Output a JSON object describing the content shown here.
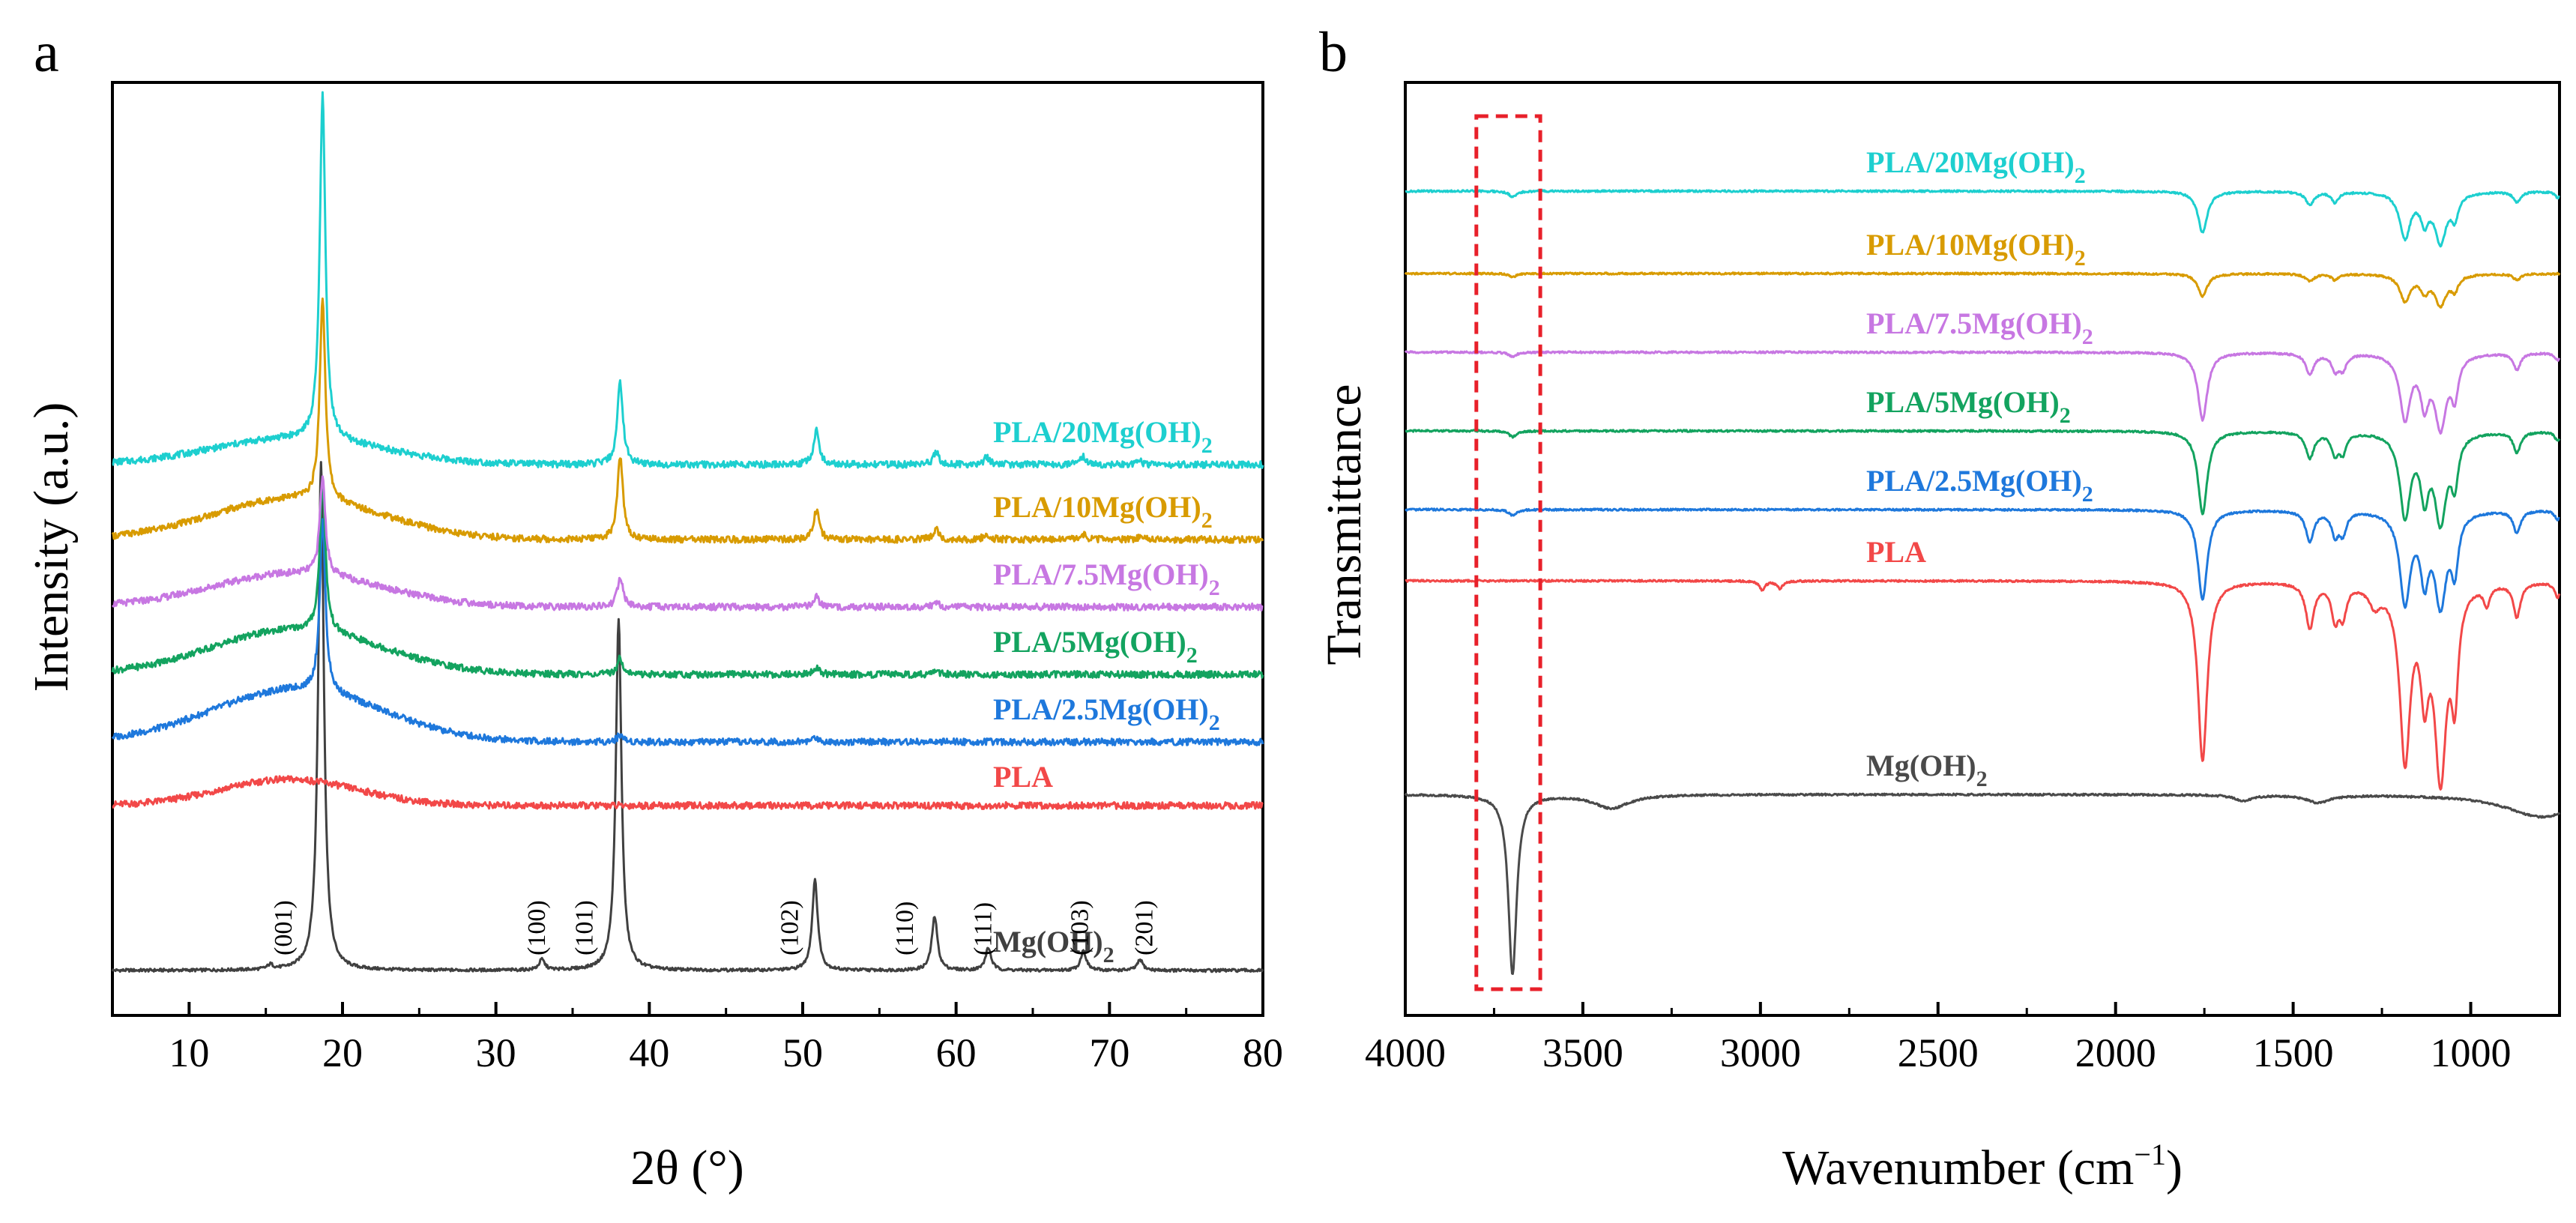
{
  "chart_data": [
    {
      "panel": "a",
      "type": "line",
      "title": "",
      "xlabel": "2θ (°)",
      "ylabel": "Intensity (a.u.)",
      "xlim": [
        5,
        80
      ],
      "xticks": [
        10,
        20,
        30,
        40,
        50,
        60,
        70,
        80
      ],
      "yticks": [],
      "legend_placement": "inline-right",
      "series": [
        {
          "name": "Mg(OH)2",
          "label": "Mg(OH)",
          "sub": "2",
          "color": "#404040",
          "offset": 0,
          "baseline": 0,
          "hump": {
            "center": 20,
            "width": 5,
            "height": 0
          },
          "peaks": [
            [
              15.3,
              6
            ],
            [
              18.6,
              680
            ],
            [
              33.0,
              14
            ],
            [
              38.0,
              470
            ],
            [
              50.8,
              120
            ],
            [
              58.6,
              72
            ],
            [
              62.1,
              30
            ],
            [
              68.3,
              26
            ],
            [
              72.0,
              14
            ]
          ]
        },
        {
          "name": "PLA",
          "label": "PLA",
          "sub": "",
          "color": "#f24848",
          "offset": 220,
          "baseline": 0,
          "hump": {
            "center": 16.5,
            "width": 4.5,
            "height": 35
          },
          "peaks": []
        },
        {
          "name": "PLA/2.5Mg(OH)2",
          "label": "PLA/2.5Mg(OH)",
          "sub": "2",
          "color": "#1e78dc",
          "offset": 310,
          "baseline": -5,
          "hump": {
            "center": 17,
            "width": 5.5,
            "height": 70
          },
          "peaks": [
            [
              18.7,
              230
            ],
            [
              38.1,
              10
            ],
            [
              50.8,
              6
            ]
          ]
        },
        {
          "name": "PLA/5Mg(OH)2",
          "label": "PLA/5Mg(OH)",
          "sub": "2",
          "color": "#13a35f",
          "offset": 400,
          "baseline": -5,
          "hump": {
            "center": 17,
            "width": 5.5,
            "height": 60
          },
          "peaks": [
            [
              18.7,
              200
            ],
            [
              38.1,
              22
            ],
            [
              50.9,
              10
            ],
            [
              58.7,
              5
            ]
          ]
        },
        {
          "name": "PLA/7.5Mg(OH)2",
          "label": "PLA/7.5Mg(OH)",
          "sub": "2",
          "color": "#c777e2",
          "offset": 490,
          "baseline": -5,
          "hump": {
            "center": 17,
            "width": 5.5,
            "height": 45
          },
          "peaks": [
            [
              18.7,
              130
            ],
            [
              38.1,
              40
            ],
            [
              50.9,
              13
            ],
            [
              58.7,
              6
            ]
          ]
        },
        {
          "name": "PLA/10Mg(OH)2",
          "label": "PLA/10Mg(OH)",
          "sub": "2",
          "color": "#d89b00",
          "offset": 580,
          "baseline": -5,
          "hump": {
            "center": 17,
            "width": 5.5,
            "height": 55
          },
          "peaks": [
            [
              18.7,
              270
            ],
            [
              38.1,
              110
            ],
            [
              50.9,
              40
            ],
            [
              58.7,
              15
            ],
            [
              62.0,
              8
            ],
            [
              68.3,
              6
            ],
            [
              72.1,
              6
            ]
          ]
        },
        {
          "name": "PLA/20Mg(OH)2",
          "label": "PLA/20Mg(OH)",
          "sub": "2",
          "color": "#1dcfcf",
          "offset": 680,
          "baseline": -5,
          "hump": {
            "center": 17,
            "width": 5.5,
            "height": 35
          },
          "peaks": [
            [
              18.7,
              460
            ],
            [
              38.1,
              110
            ],
            [
              50.9,
              45
            ],
            [
              58.7,
              17
            ],
            [
              62.0,
              10
            ],
            [
              68.3,
              10
            ],
            [
              72.0,
              4
            ]
          ]
        }
      ],
      "peak_labels": [
        {
          "text": "(001)",
          "x": 16.1
        },
        {
          "text": "(100)",
          "x": 32.6
        },
        {
          "text": "(101)",
          "x": 35.7
        },
        {
          "text": "(102)",
          "x": 49.1
        },
        {
          "text": "(110)",
          "x": 56.6
        },
        {
          "text": "(111)",
          "x": 61.7
        },
        {
          "text": "(103)",
          "x": 68.0
        },
        {
          "text": "(201)",
          "x": 72.2
        }
      ]
    },
    {
      "panel": "b",
      "type": "line",
      "title": "",
      "xlabel": "Wavenumber (cm",
      "xlabel_sup": "−1",
      "xlabel_end": ")",
      "ylabel": "Transmittance",
      "xlim": [
        4000,
        750
      ],
      "xticks": [
        4000,
        3500,
        3000,
        2500,
        2000,
        1500,
        1000
      ],
      "yticks": [],
      "highlight_box": {
        "x_from": 3800,
        "x_to": 3620,
        "color": "#e8202a",
        "style": "dashed"
      },
      "series": [
        {
          "name": "Mg(OH)2",
          "label": "Mg(OH)",
          "sub": "2",
          "color": "#4a4a4a",
          "offset": 0,
          "bands": [
            [
              3698,
              240,
              14
            ],
            [
              3420,
              18,
              60
            ],
            [
              1640,
              8,
              30
            ],
            [
              1430,
              10,
              40
            ],
            [
              800,
              30,
              120
            ]
          ]
        },
        {
          "name": "PLA",
          "label": "PLA",
          "sub": "",
          "color": "#f24848",
          "offset": 285,
          "bands": [
            [
              2995,
              12,
              10
            ],
            [
              2945,
              10,
              10
            ],
            [
              1755,
              240,
              16
            ],
            [
              1453,
              60,
              14
            ],
            [
              1382,
              45,
              12
            ],
            [
              1360,
              40,
              12
            ],
            [
              1270,
              25,
              20
            ],
            [
              1185,
              230,
              18
            ],
            [
              1130,
              120,
              14
            ],
            [
              1085,
              250,
              20
            ],
            [
              1045,
              130,
              12
            ],
            [
              955,
              25,
              10
            ],
            [
              870,
              45,
              12
            ],
            [
              755,
              20,
              10
            ]
          ]
        },
        {
          "name": "PLA/2.5Mg(OH)2",
          "label": "PLA/2.5Mg(OH)",
          "sub": "2",
          "color": "#1e78dc",
          "offset": 380,
          "bands": [
            [
              3698,
              8,
              12
            ],
            [
              1755,
              120,
              16
            ],
            [
              1453,
              40,
              14
            ],
            [
              1382,
              30,
              12
            ],
            [
              1360,
              28,
              12
            ],
            [
              1185,
              120,
              18
            ],
            [
              1130,
              80,
              14
            ],
            [
              1085,
              120,
              20
            ],
            [
              1045,
              70,
              12
            ],
            [
              870,
              30,
              12
            ],
            [
              755,
              12,
              10
            ]
          ]
        },
        {
          "name": "PLA/5Mg(OH)2",
          "label": "PLA/5Mg(OH)",
          "sub": "2",
          "color": "#13a35f",
          "offset": 485,
          "bands": [
            [
              3698,
              8,
              12
            ],
            [
              1755,
              110,
              16
            ],
            [
              1453,
              35,
              14
            ],
            [
              1382,
              28,
              12
            ],
            [
              1360,
              25,
              12
            ],
            [
              1185,
              110,
              18
            ],
            [
              1130,
              75,
              14
            ],
            [
              1085,
              115,
              20
            ],
            [
              1045,
              60,
              12
            ],
            [
              870,
              28,
              12
            ],
            [
              755,
              12,
              10
            ]
          ]
        },
        {
          "name": "PLA/7.5Mg(OH)2",
          "label": "PLA/7.5Mg(OH)",
          "sub": "2",
          "color": "#c777e2",
          "offset": 590,
          "bands": [
            [
              3698,
              6,
              12
            ],
            [
              1755,
              90,
              16
            ],
            [
              1453,
              28,
              14
            ],
            [
              1382,
              22,
              12
            ],
            [
              1360,
              20,
              12
            ],
            [
              1185,
              85,
              18
            ],
            [
              1130,
              60,
              14
            ],
            [
              1085,
              95,
              20
            ],
            [
              1045,
              50,
              12
            ],
            [
              870,
              22,
              12
            ],
            [
              755,
              10,
              10
            ]
          ]
        },
        {
          "name": "PLA/10Mg(OH)2",
          "label": "PLA/10Mg(OH)",
          "sub": "2",
          "color": "#d89b00",
          "offset": 695,
          "bands": [
            [
              3698,
              5,
              12
            ],
            [
              1755,
              30,
              16
            ],
            [
              1453,
              10,
              14
            ],
            [
              1382,
              8,
              12
            ],
            [
              1185,
              35,
              18
            ],
            [
              1130,
              20,
              14
            ],
            [
              1085,
              40,
              20
            ],
            [
              1045,
              18,
              12
            ],
            [
              870,
              8,
              12
            ]
          ]
        },
        {
          "name": "PLA/20Mg(OH)2",
          "label": "PLA/20Mg(OH)",
          "sub": "2",
          "color": "#1dcfcf",
          "offset": 805,
          "bands": [
            [
              3698,
              8,
              12
            ],
            [
              1755,
              55,
              16
            ],
            [
              1453,
              18,
              14
            ],
            [
              1382,
              14,
              12
            ],
            [
              1185,
              60,
              18
            ],
            [
              1130,
              35,
              14
            ],
            [
              1085,
              65,
              20
            ],
            [
              1045,
              30,
              12
            ],
            [
              870,
              14,
              12
            ],
            [
              755,
              8,
              10
            ]
          ]
        }
      ]
    }
  ]
}
